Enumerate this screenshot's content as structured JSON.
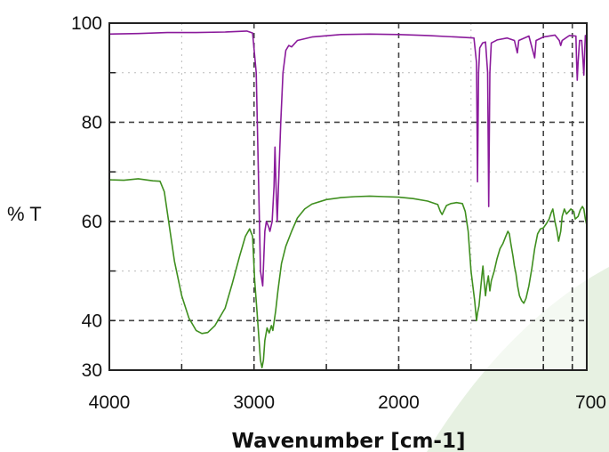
{
  "chart_data": {
    "type": "line",
    "xlabel": "Wavenumber [cm-1]",
    "ylabel": "% T",
    "xlim": [
      4000,
      700
    ],
    "ylim": [
      30,
      100
    ],
    "x_reversed": true,
    "x_ticks": [
      4000,
      3000,
      2000,
      700
    ],
    "x_tick_labels": [
      "4000",
      "3000",
      "2000",
      "700"
    ],
    "y_ticks": [
      30,
      40,
      60,
      80,
      100
    ],
    "y_tick_labels": [
      "30",
      "40",
      "60",
      "80",
      "100"
    ],
    "grid": true,
    "colors": {
      "top": "#8a1a9b",
      "bottom": "#3f8f1f",
      "background_shape": "#e7f1e2"
    },
    "series": [
      {
        "color": "#8a1a9b",
        "points": [
          [
            4000,
            97.8
          ],
          [
            3800,
            97.9
          ],
          [
            3600,
            98.1
          ],
          [
            3400,
            98.1
          ],
          [
            3200,
            98.2
          ],
          [
            3050,
            98.4
          ],
          [
            3010,
            98.0
          ],
          [
            2985,
            90
          ],
          [
            2970,
            70
          ],
          [
            2955,
            50
          ],
          [
            2940,
            47
          ],
          [
            2925,
            58
          ],
          [
            2915,
            60
          ],
          [
            2900,
            59
          ],
          [
            2890,
            58
          ],
          [
            2875,
            60
          ],
          [
            2862,
            67
          ],
          [
            2855,
            75
          ],
          [
            2848,
            67
          ],
          [
            2840,
            60
          ],
          [
            2830,
            68
          ],
          [
            2815,
            80
          ],
          [
            2800,
            90
          ],
          [
            2780,
            94.5
          ],
          [
            2760,
            95.5
          ],
          [
            2740,
            95.2
          ],
          [
            2700,
            96.5
          ],
          [
            2600,
            97.2
          ],
          [
            2400,
            97.7
          ],
          [
            2200,
            97.8
          ],
          [
            2000,
            97.7
          ],
          [
            1800,
            97.5
          ],
          [
            1600,
            97.2
          ],
          [
            1480,
            97.0
          ],
          [
            1462,
            92
          ],
          [
            1455,
            68
          ],
          [
            1448,
            90
          ],
          [
            1440,
            95
          ],
          [
            1420,
            96
          ],
          [
            1400,
            96.2
          ],
          [
            1385,
            90
          ],
          [
            1378,
            63
          ],
          [
            1370,
            90
          ],
          [
            1360,
            96
          ],
          [
            1320,
            96.6
          ],
          [
            1250,
            97
          ],
          [
            1200,
            96.5
          ],
          [
            1180,
            94
          ],
          [
            1170,
            96.5
          ],
          [
            1100,
            97.4
          ],
          [
            1060,
            93
          ],
          [
            1050,
            96.5
          ],
          [
            1000,
            97.2
          ],
          [
            920,
            97.6
          ],
          [
            890,
            96.5
          ],
          [
            880,
            95.5
          ],
          [
            870,
            96.5
          ],
          [
            820,
            97.5
          ],
          [
            775,
            97.4
          ],
          [
            770,
            92
          ],
          [
            766,
            88.5
          ],
          [
            760,
            92
          ],
          [
            750,
            96.5
          ],
          [
            735,
            96.5
          ],
          [
            725,
            92
          ],
          [
            720,
            89.5
          ],
          [
            715,
            94
          ],
          [
            710,
            97.5
          ],
          [
            700,
            97.3
          ]
        ]
      },
      {
        "color": "#3f8f1f",
        "points": [
          [
            4000,
            68.4
          ],
          [
            3900,
            68.3
          ],
          [
            3800,
            68.6
          ],
          [
            3700,
            68.2
          ],
          [
            3650,
            68.1
          ],
          [
            3620,
            66
          ],
          [
            3590,
            60
          ],
          [
            3550,
            52
          ],
          [
            3500,
            45
          ],
          [
            3450,
            40.5
          ],
          [
            3400,
            38
          ],
          [
            3360,
            37.4
          ],
          [
            3320,
            37.6
          ],
          [
            3270,
            39
          ],
          [
            3200,
            42.5
          ],
          [
            3150,
            47.5
          ],
          [
            3100,
            53
          ],
          [
            3060,
            57
          ],
          [
            3030,
            58.5
          ],
          [
            3010,
            57
          ],
          [
            2995,
            48
          ],
          [
            2980,
            42
          ],
          [
            2965,
            36
          ],
          [
            2955,
            32
          ],
          [
            2945,
            30.5
          ],
          [
            2935,
            32
          ],
          [
            2925,
            36
          ],
          [
            2910,
            38.5
          ],
          [
            2895,
            37.5
          ],
          [
            2880,
            39
          ],
          [
            2870,
            38
          ],
          [
            2860,
            40
          ],
          [
            2850,
            42
          ],
          [
            2835,
            46
          ],
          [
            2810,
            51.5
          ],
          [
            2780,
            55
          ],
          [
            2740,
            58
          ],
          [
            2700,
            60.7
          ],
          [
            2650,
            62.5
          ],
          [
            2600,
            63.5
          ],
          [
            2500,
            64.4
          ],
          [
            2400,
            64.8
          ],
          [
            2300,
            65
          ],
          [
            2200,
            65.1
          ],
          [
            2100,
            65
          ],
          [
            2000,
            64.9
          ],
          [
            1900,
            64.6
          ],
          [
            1800,
            64.1
          ],
          [
            1730,
            63.4
          ],
          [
            1712,
            62
          ],
          [
            1700,
            61.4
          ],
          [
            1690,
            62
          ],
          [
            1670,
            63.2
          ],
          [
            1640,
            63.6
          ],
          [
            1600,
            63.8
          ],
          [
            1560,
            63.6
          ],
          [
            1540,
            62
          ],
          [
            1520,
            58
          ],
          [
            1500,
            50
          ],
          [
            1475,
            44
          ],
          [
            1462,
            40
          ],
          [
            1455,
            41.5
          ],
          [
            1445,
            43
          ],
          [
            1435,
            46
          ],
          [
            1425,
            49
          ],
          [
            1418,
            51
          ],
          [
            1410,
            48
          ],
          [
            1400,
            45
          ],
          [
            1392,
            47
          ],
          [
            1380,
            49
          ],
          [
            1370,
            46
          ],
          [
            1360,
            48
          ],
          [
            1340,
            50
          ],
          [
            1320,
            52.5
          ],
          [
            1300,
            54.5
          ],
          [
            1280,
            55.5
          ],
          [
            1260,
            57
          ],
          [
            1245,
            58
          ],
          [
            1235,
            57.5
          ],
          [
            1225,
            55.5
          ],
          [
            1210,
            53
          ],
          [
            1200,
            51
          ],
          [
            1190,
            49.5
          ],
          [
            1178,
            47
          ],
          [
            1165,
            45
          ],
          [
            1150,
            44
          ],
          [
            1135,
            43.5
          ],
          [
            1120,
            44.5
          ],
          [
            1100,
            47
          ],
          [
            1080,
            50.5
          ],
          [
            1060,
            54.5
          ],
          [
            1040,
            57.5
          ],
          [
            1020,
            58.5
          ],
          [
            1000,
            58.7
          ],
          [
            980,
            59.5
          ],
          [
            960,
            60.5
          ],
          [
            945,
            61.8
          ],
          [
            935,
            62.5
          ],
          [
            920,
            60
          ],
          [
            905,
            58
          ],
          [
            895,
            56
          ],
          [
            880,
            58
          ],
          [
            870,
            61
          ],
          [
            855,
            62.5
          ],
          [
            840,
            61.5
          ],
          [
            825,
            62
          ],
          [
            810,
            62.5
          ],
          [
            790,
            62
          ],
          [
            780,
            60.5
          ],
          [
            760,
            61
          ],
          [
            745,
            62.3
          ],
          [
            730,
            63
          ],
          [
            720,
            62.5
          ],
          [
            710,
            60.5
          ],
          [
            700,
            59.3
          ]
        ]
      }
    ]
  }
}
